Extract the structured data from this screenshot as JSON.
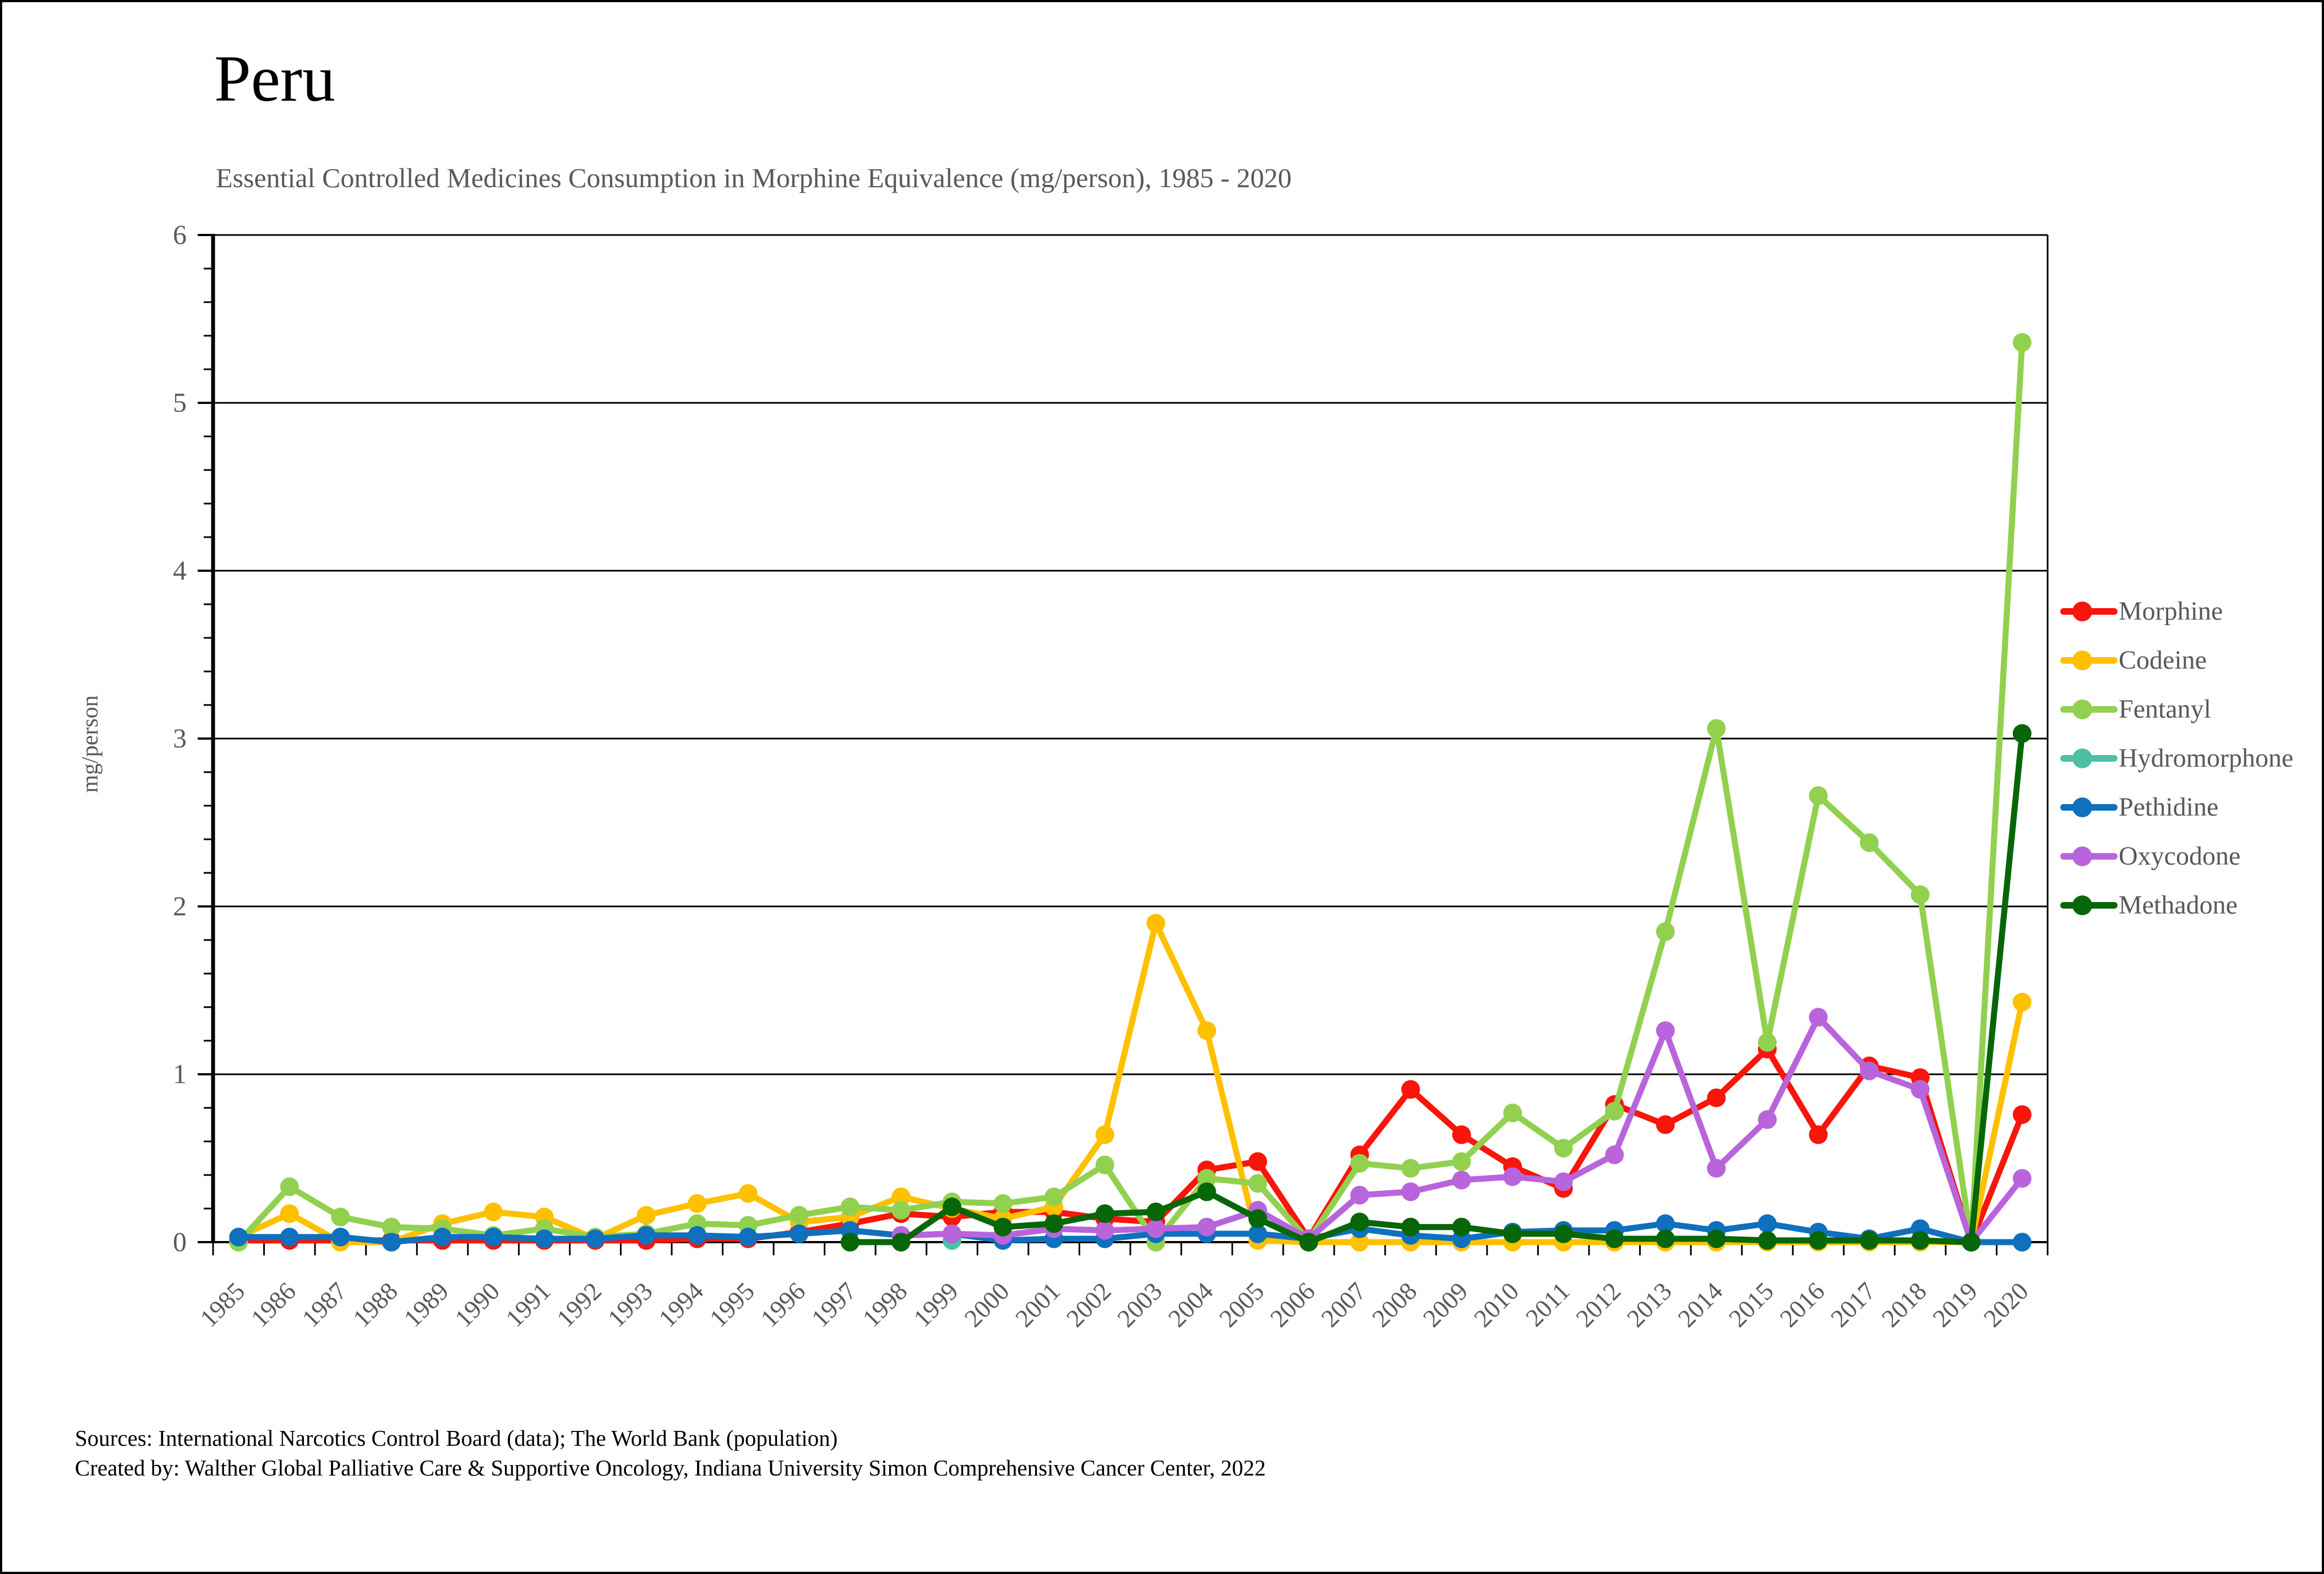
{
  "title": "Peru",
  "subtitle": "Essential Controlled Medicines Consumption in Morphine Equivalence (mg/person), 1985 - 2020",
  "y_axis": {
    "label": "mg/person",
    "min": 0,
    "max": 6,
    "major_step": 1,
    "minor_step": 0.2,
    "tick_labels": [
      "0",
      "1",
      "2",
      "3",
      "4",
      "5",
      "6"
    ]
  },
  "footer": {
    "sources_line": "Sources: International Narcotics Control Board (data); The World Bank (population)",
    "created_line": "Created by: Walther Global Palliative Care & Supportive Oncology, Indiana University Simon Comprehensive Cancer Center, 2022"
  },
  "colors": {
    "axis": "#000000",
    "text_gray": "#595959"
  },
  "chart_data": {
    "type": "line",
    "title": "Peru — Essential Controlled Medicines Consumption in Morphine Equivalence (mg/person), 1985 - 2020",
    "xlabel": "",
    "ylabel": "mg/person",
    "ylim": [
      0,
      6
    ],
    "grid": "horizontal-major",
    "legend_position": "right",
    "categories": [
      1985,
      1986,
      1987,
      1988,
      1989,
      1990,
      1991,
      1992,
      1993,
      1994,
      1995,
      1996,
      1997,
      1998,
      1999,
      2000,
      2001,
      2002,
      2003,
      2004,
      2005,
      2006,
      2007,
      2008,
      2009,
      2010,
      2011,
      2012,
      2013,
      2014,
      2015,
      2016,
      2017,
      2018,
      2019,
      2020
    ],
    "series": [
      {
        "name": "Morphine",
        "color": "#F8150B",
        "values": [
          0.01,
          0.01,
          0.01,
          0.01,
          0.01,
          0.01,
          0.01,
          0.01,
          0.01,
          0.02,
          0.02,
          0.06,
          0.11,
          0.17,
          0.15,
          0.18,
          0.18,
          0.14,
          0.12,
          0.43,
          0.48,
          0.02,
          0.52,
          0.91,
          0.64,
          0.45,
          0.32,
          0.82,
          0.7,
          0.86,
          1.15,
          0.64,
          1.05,
          0.98,
          0.0,
          0.76
        ]
      },
      {
        "name": "Codeine",
        "color": "#FFC000",
        "values": [
          0.03,
          0.17,
          0.0,
          0.0,
          0.11,
          0.18,
          0.15,
          0.02,
          0.16,
          0.23,
          0.29,
          0.12,
          0.15,
          0.27,
          0.2,
          0.14,
          0.21,
          0.64,
          1.9,
          1.26,
          0.01,
          0.0,
          0.0,
          0.0,
          0.0,
          0.0,
          0.0,
          0.0,
          0.0,
          0.0,
          0.0,
          0.0,
          0.0,
          0.0,
          0.0,
          1.43
        ]
      },
      {
        "name": "Fentanyl",
        "color": "#92D050",
        "values": [
          0.0,
          0.33,
          0.15,
          0.09,
          0.08,
          0.04,
          0.08,
          0.03,
          0.05,
          0.11,
          0.1,
          0.16,
          0.21,
          0.19,
          0.24,
          0.23,
          0.27,
          0.46,
          0.0,
          0.38,
          0.35,
          0.01,
          0.47,
          0.44,
          0.48,
          0.77,
          0.56,
          0.78,
          1.85,
          3.06,
          1.19,
          2.66,
          2.38,
          2.07,
          0.0,
          5.36
        ]
      },
      {
        "name": "Hydromorphone",
        "color": "#4CBFA4",
        "values": [
          null,
          null,
          null,
          null,
          null,
          null,
          null,
          null,
          null,
          null,
          null,
          null,
          null,
          null,
          0.01,
          null,
          null,
          null,
          null,
          null,
          null,
          null,
          null,
          null,
          null,
          null,
          null,
          null,
          null,
          null,
          null,
          null,
          null,
          null,
          null,
          null
        ]
      },
      {
        "name": "Pethidine",
        "color": "#0F70BE",
        "values": [
          0.03,
          0.03,
          0.03,
          0.0,
          0.03,
          0.03,
          0.02,
          0.02,
          0.04,
          0.04,
          0.03,
          0.05,
          0.07,
          0.04,
          0.05,
          0.01,
          0.02,
          0.02,
          0.05,
          0.05,
          0.05,
          0.02,
          0.08,
          0.04,
          0.02,
          0.06,
          0.07,
          0.07,
          0.11,
          0.07,
          0.11,
          0.06,
          0.02,
          0.08,
          0.0,
          0.0
        ]
      },
      {
        "name": "Oxycodone",
        "color": "#B865DC",
        "values": [
          null,
          null,
          null,
          null,
          null,
          null,
          null,
          null,
          null,
          null,
          null,
          null,
          null,
          0.04,
          0.05,
          0.04,
          0.08,
          0.07,
          0.08,
          0.09,
          0.19,
          0.02,
          0.28,
          0.3,
          0.37,
          0.39,
          0.36,
          0.52,
          1.26,
          0.44,
          0.73,
          1.34,
          1.02,
          0.91,
          0.0,
          0.38
        ]
      },
      {
        "name": "Methadone",
        "color": "#076607",
        "values": [
          null,
          null,
          null,
          null,
          null,
          null,
          null,
          null,
          null,
          null,
          null,
          null,
          0.0,
          0.0,
          0.21,
          0.09,
          0.11,
          0.17,
          0.18,
          0.3,
          0.14,
          0.0,
          0.12,
          0.09,
          0.09,
          0.05,
          0.05,
          0.02,
          0.02,
          0.02,
          0.01,
          0.01,
          0.01,
          0.01,
          0.0,
          3.03
        ]
      }
    ]
  }
}
